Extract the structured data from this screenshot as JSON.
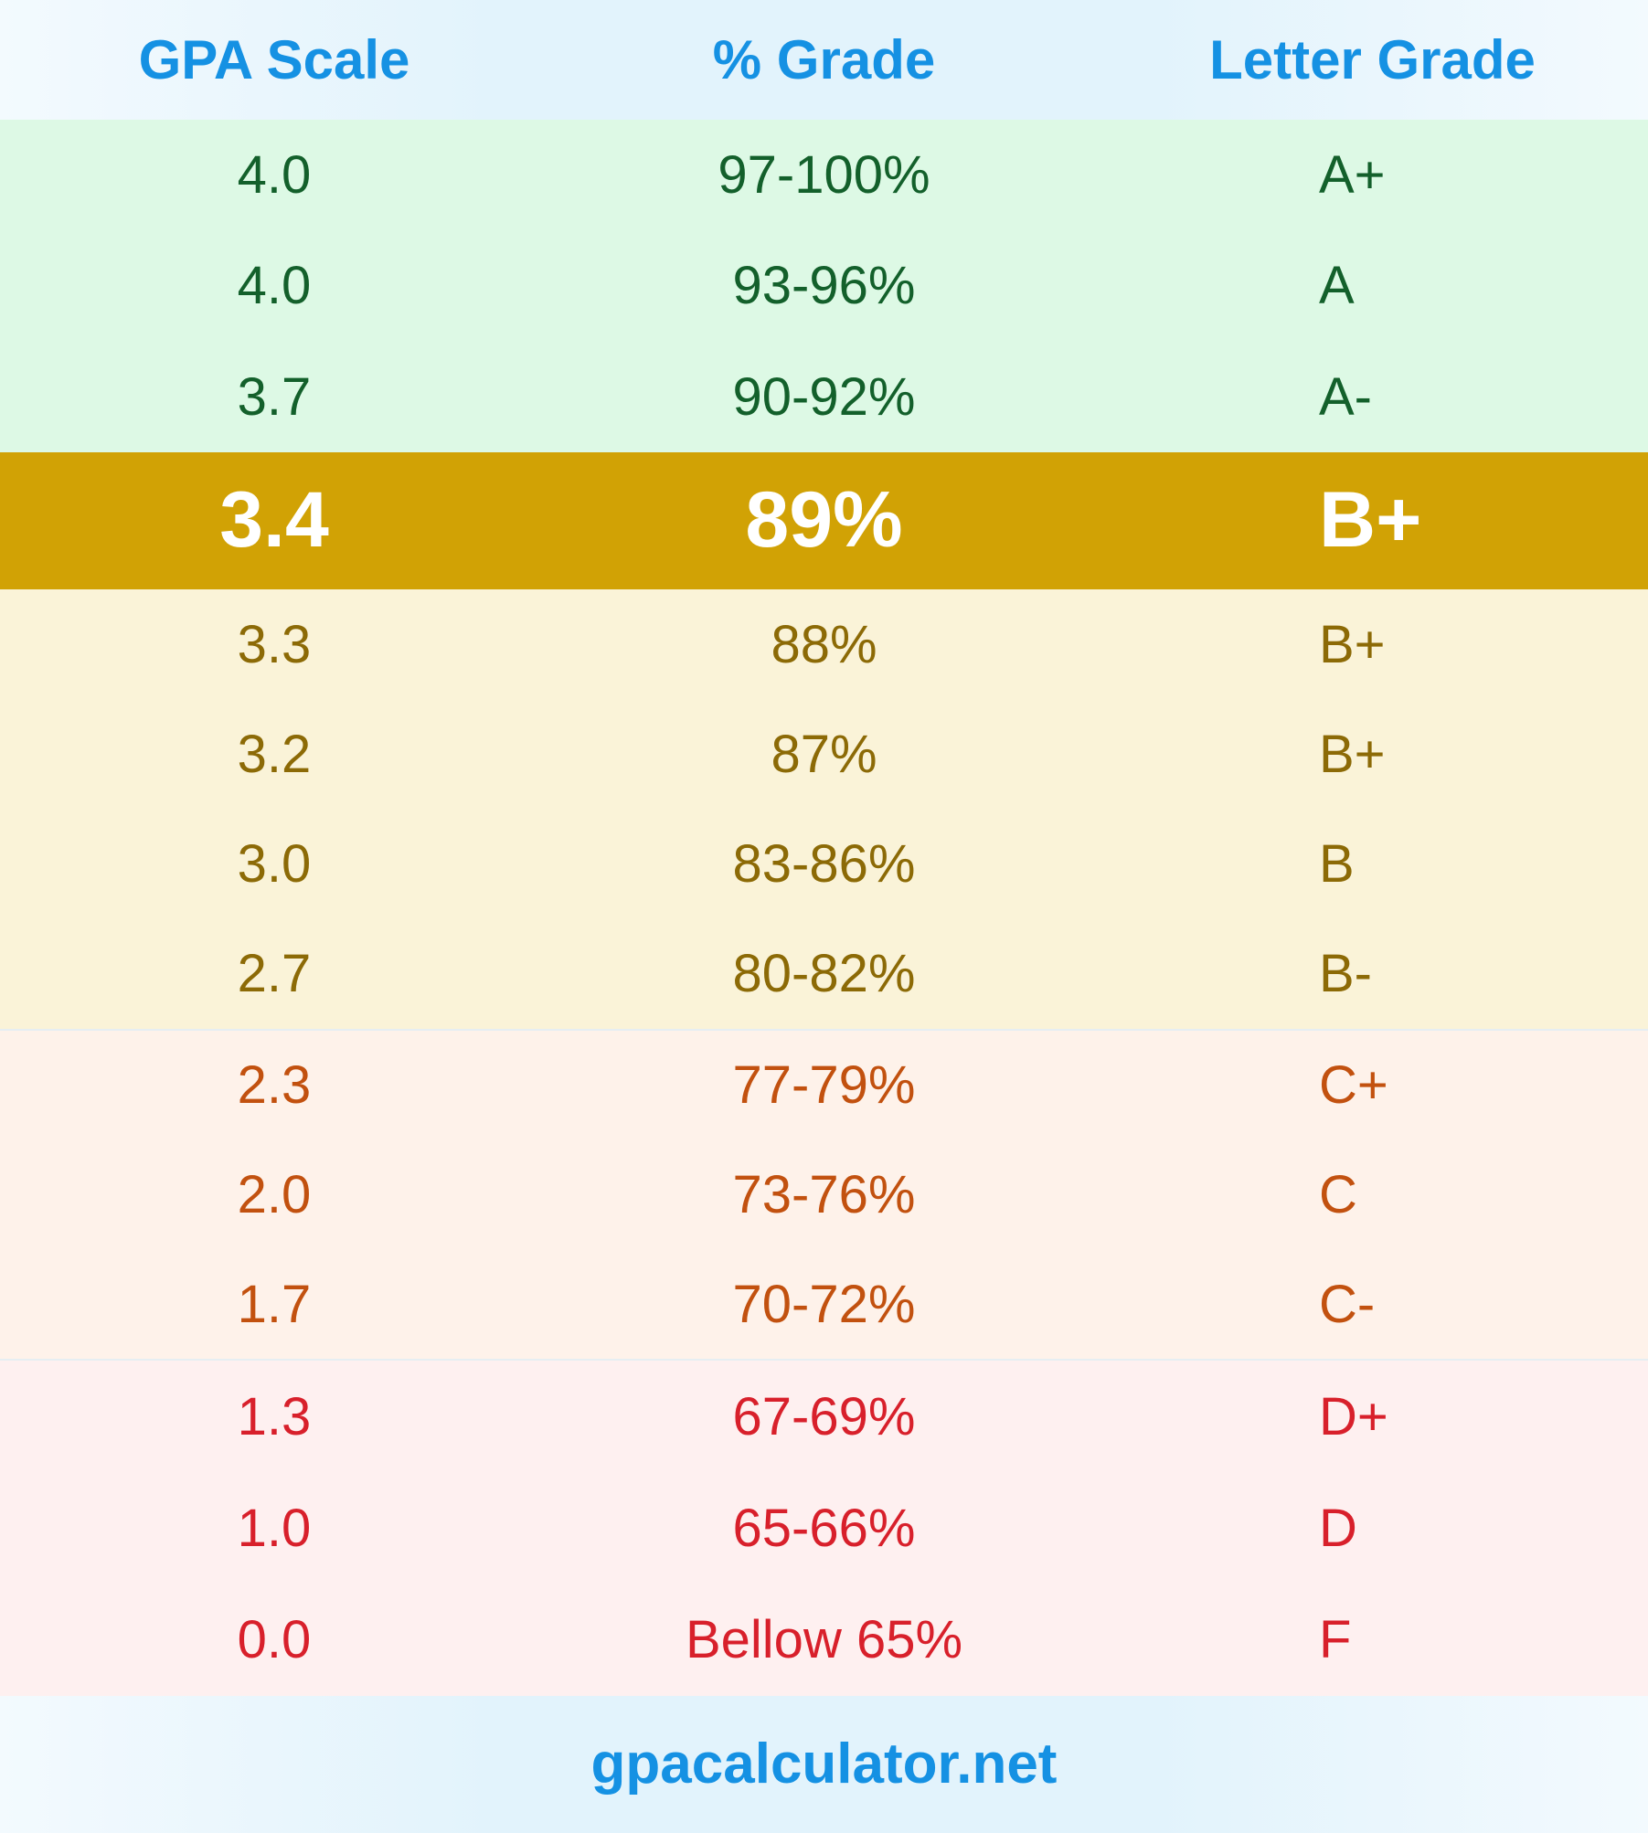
{
  "header": {
    "gpa": "GPA Scale",
    "percent": "% Grade",
    "letter": "Letter Grade"
  },
  "colors": {
    "accent": "#1591e3",
    "green_bg": "#ddf9e5",
    "green_text": "#13602b",
    "highlight_bg": "#d1a205",
    "yellow_bg": "#faf3d8",
    "yellow_text": "#8c6a06",
    "orange_bg": "#fef2ea",
    "orange_text": "#c2510f",
    "red_bg": "#fef0f0",
    "red_text": "#d8202b"
  },
  "rows": [
    {
      "gpa": "4.0",
      "percent": "97-100%",
      "letter": "A+",
      "group": "green"
    },
    {
      "gpa": "4.0",
      "percent": "93-96%",
      "letter": "A",
      "group": "green"
    },
    {
      "gpa": "3.7",
      "percent": "90-92%",
      "letter": "A-",
      "group": "green"
    },
    {
      "gpa": "3.4",
      "percent": "89%",
      "letter": "B+",
      "group": "hl"
    },
    {
      "gpa": "3.3",
      "percent": "88%",
      "letter": "B+",
      "group": "yellow"
    },
    {
      "gpa": "3.2",
      "percent": "87%",
      "letter": "B+",
      "group": "yellow"
    },
    {
      "gpa": "3.0",
      "percent": "83-86%",
      "letter": "B",
      "group": "yellow"
    },
    {
      "gpa": "2.7",
      "percent": "80-82%",
      "letter": "B-",
      "group": "yellow"
    },
    {
      "gpa": "2.3",
      "percent": "77-79%",
      "letter": "C+",
      "group": "orange"
    },
    {
      "gpa": "2.0",
      "percent": "73-76%",
      "letter": "C",
      "group": "orange"
    },
    {
      "gpa": "1.7",
      "percent": "70-72%",
      "letter": "C-",
      "group": "orange"
    },
    {
      "gpa": "1.3",
      "percent": "67-69%",
      "letter": "D+",
      "group": "red"
    },
    {
      "gpa": "1.0",
      "percent": "65-66%",
      "letter": "D",
      "group": "red"
    },
    {
      "gpa": "0.0",
      "percent": "Bellow 65%",
      "letter": "F",
      "group": "red"
    }
  ],
  "footer": {
    "site": "gpacalculator.net"
  }
}
